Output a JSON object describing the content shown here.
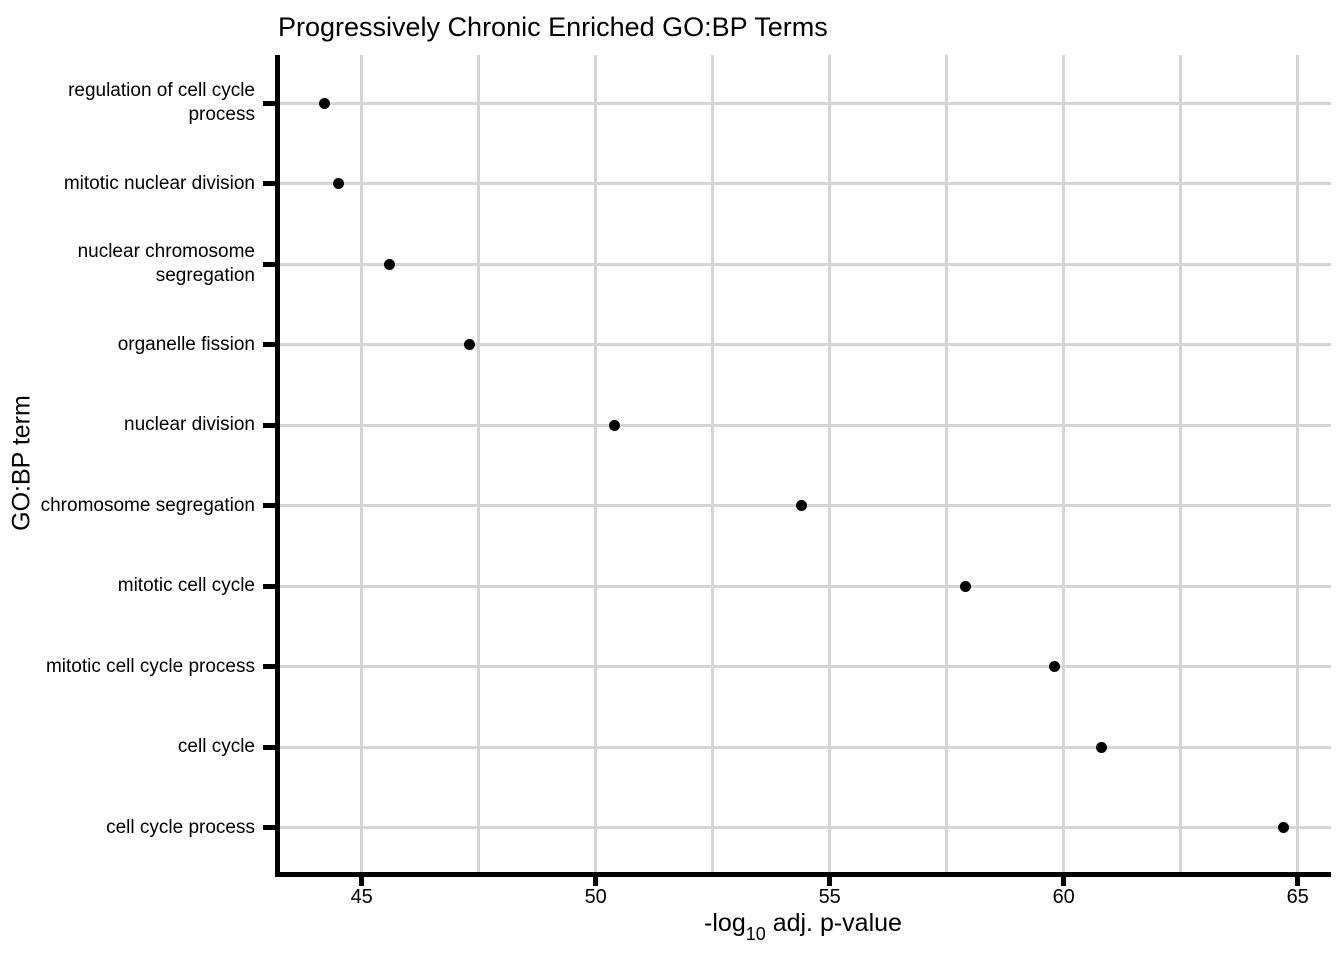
{
  "chart_data": {
    "type": "scatter",
    "orientation": "horizontal-dot-plot",
    "title": "Progressively Chronic Enriched GO:BP Terms",
    "xlabel": "-log10 adj. p-value",
    "xlabel_parts": {
      "prefix": "-log",
      "sub": "10",
      "suffix": " adj. p-value"
    },
    "ylabel": "GO:BP term",
    "categories": [
      "regulation of cell cycle process",
      "mitotic nuclear division",
      "nuclear chromosome segregation",
      "organelle fission",
      "nuclear division",
      "chromosome segregation",
      "mitotic cell cycle",
      "mitotic cell cycle process",
      "cell cycle",
      "cell cycle process"
    ],
    "category_display_lines": [
      [
        "regulation of cell cycle",
        "process"
      ],
      [
        "mitotic nuclear division"
      ],
      [
        "nuclear chromosome",
        "segregation"
      ],
      [
        "organelle fission"
      ],
      [
        "nuclear division"
      ],
      [
        "chromosome segregation"
      ],
      [
        "mitotic cell cycle"
      ],
      [
        "mitotic cell cycle process"
      ],
      [
        "cell cycle"
      ],
      [
        "cell cycle process"
      ]
    ],
    "values": [
      44.2,
      44.5,
      45.6,
      47.3,
      50.4,
      54.4,
      57.9,
      59.8,
      60.8,
      64.7
    ],
    "x_ticks": [
      45,
      50,
      55,
      60,
      65
    ],
    "x_minor_gridlines": [
      47.5,
      52.5,
      57.5,
      62.5
    ],
    "xlim": [
      43.25,
      65.75
    ],
    "grid": true,
    "legend_position": "none",
    "point_color": "#000000",
    "grid_color": "#d5d5d5",
    "axis_color": "#000000",
    "background_color": "#ffffff"
  }
}
